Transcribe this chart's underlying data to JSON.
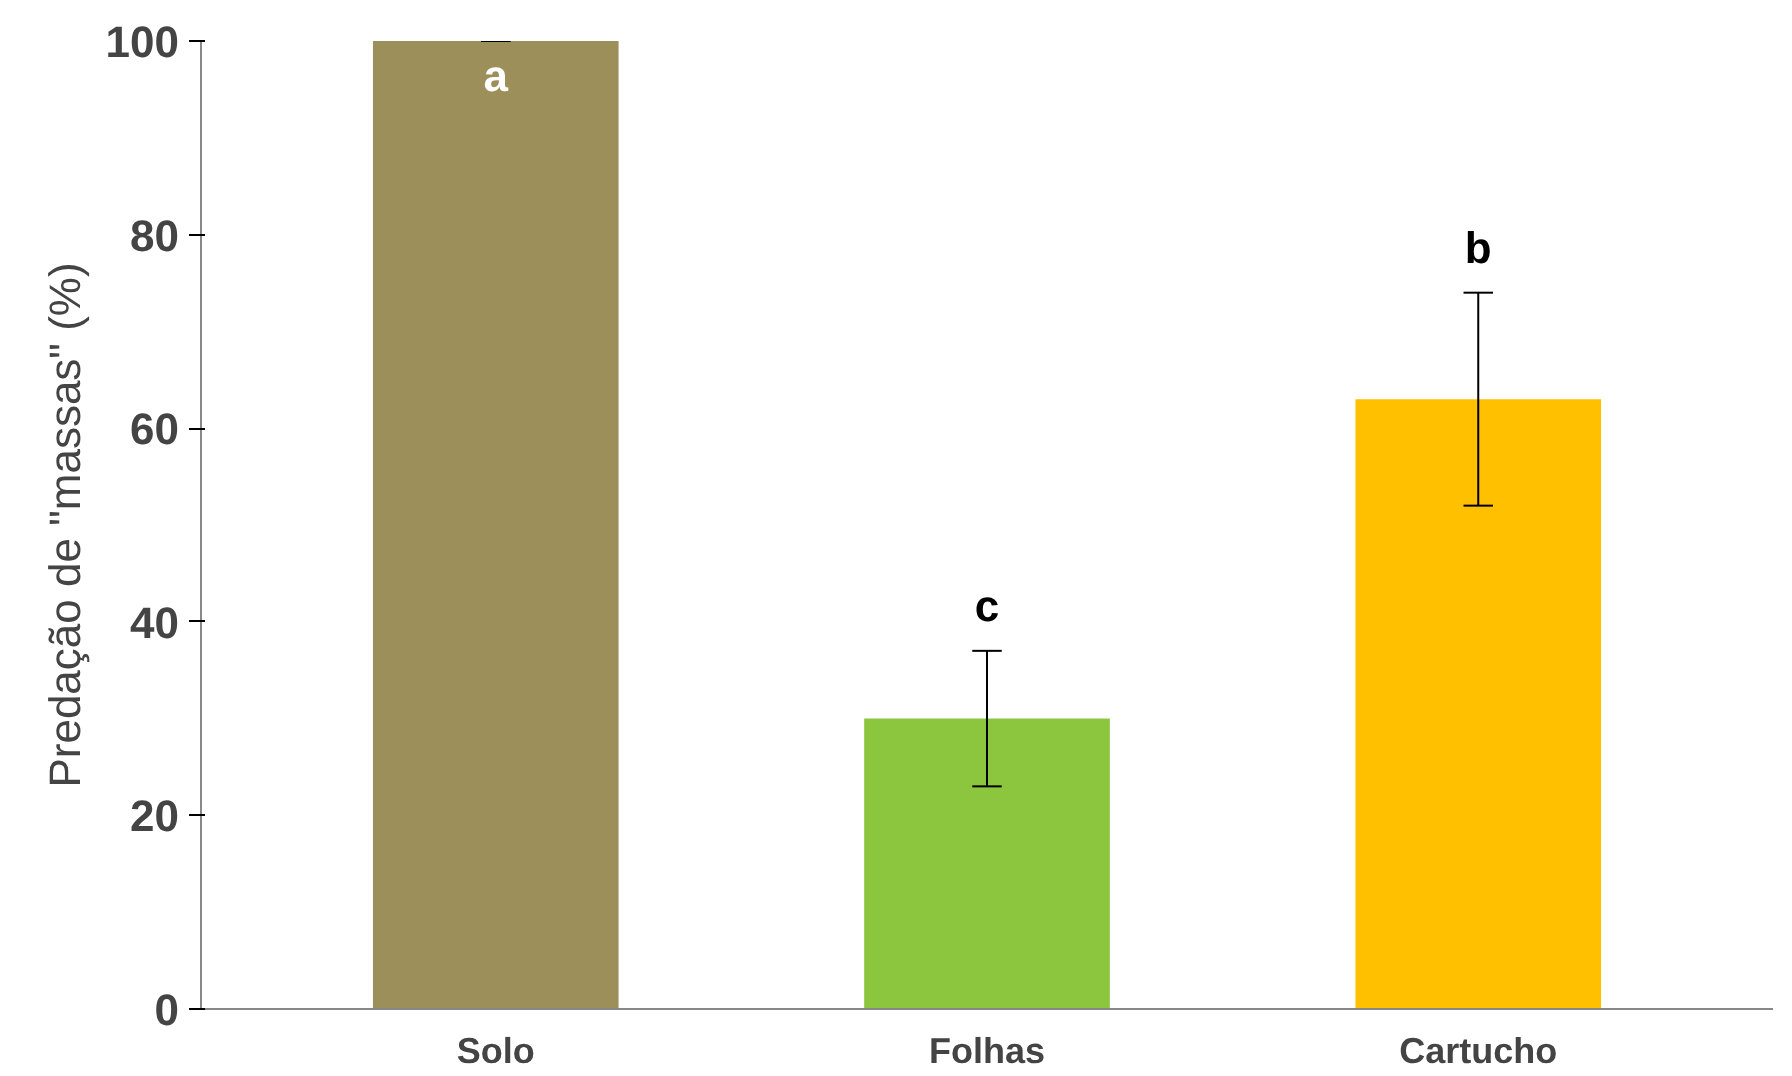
{
  "chart_data": {
    "type": "bar",
    "ylabel": "Predação de \"massas\" (%)",
    "categories": [
      "Solo",
      "Folhas",
      "Cartucho"
    ],
    "values": [
      100,
      30,
      63
    ],
    "colors": [
      "#9c8f5a",
      "#8cc63e",
      "#ffc000"
    ],
    "errors": [
      0,
      [
        23,
        37
      ],
      [
        52,
        74
      ]
    ],
    "ylim": [
      0,
      100
    ],
    "yticks": [
      0,
      20,
      40,
      60,
      80,
      100
    ],
    "annotations": [
      "a",
      "c",
      "b"
    ],
    "grid": false
  }
}
